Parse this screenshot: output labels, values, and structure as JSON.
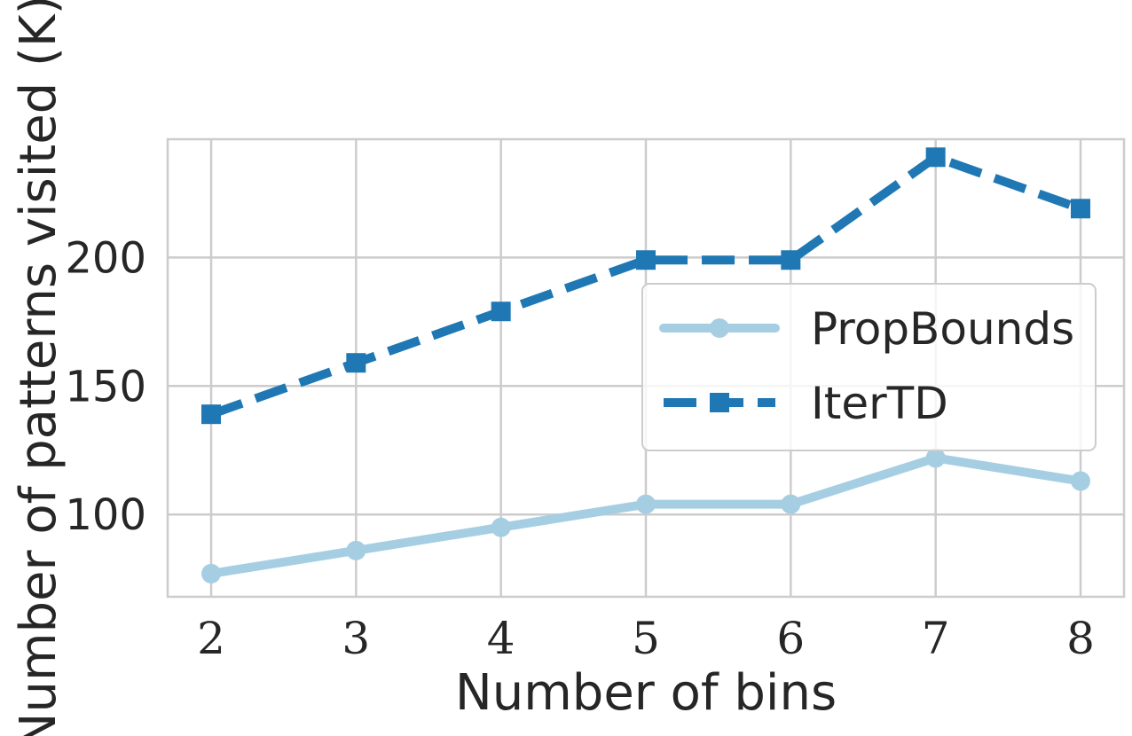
{
  "chart_data": {
    "type": "line",
    "xlabel": "Number of bins",
    "ylabel": "Number of patterns visited (K)",
    "x": [
      2,
      3,
      4,
      5,
      6,
      7,
      8
    ],
    "xlim": [
      1.7,
      8.3
    ],
    "ylim": [
      68,
      246
    ],
    "yticks": [
      100,
      150,
      200
    ],
    "grid": true,
    "legend_position": "center-right",
    "series": [
      {
        "name": "PropBounds",
        "values": [
          77,
          86,
          95,
          104,
          104,
          122,
          113
        ],
        "color": "#a6cee3",
        "line_style": "solid",
        "marker": "circle"
      },
      {
        "name": "IterTD",
        "values": [
          139,
          159,
          179,
          199,
          199,
          239,
          219
        ],
        "color": "#1f78b4",
        "line_style": "dashed",
        "marker": "square"
      }
    ]
  }
}
